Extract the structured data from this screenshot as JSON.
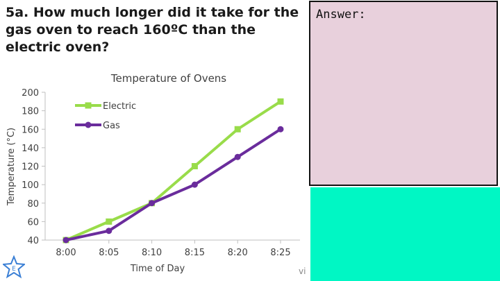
{
  "question": {
    "text": "5a. How much longer did it take for the gas oven to reach 160ºC than the electric oven?"
  },
  "answer": {
    "label": "Answer:"
  },
  "footer": {
    "text": "vi"
  },
  "colors": {
    "answer_bg": "#e8d0dc",
    "teal": "#00f7c4",
    "electric": "#99dc4a",
    "gas": "#6a2c9c",
    "star": "#3a7fd5"
  },
  "icons": {
    "badge": "star-icon",
    "badge_letter": "E"
  },
  "chart_data": {
    "type": "line",
    "title": "Temperature of Ovens",
    "xlabel": "Time of Day",
    "ylabel": "Temperature (°C)",
    "categories": [
      "8:00",
      "8:05",
      "8:10",
      "8:15",
      "8:20",
      "8:25"
    ],
    "ylim": [
      40,
      200
    ],
    "yticks": [
      40,
      60,
      80,
      100,
      120,
      140,
      160,
      180,
      200
    ],
    "grid": false,
    "legend": "top-left",
    "series": [
      {
        "name": "Electric",
        "values": [
          40,
          60,
          80,
          120,
          160,
          190
        ],
        "marker": "square",
        "color": "#99dc4a"
      },
      {
        "name": "Gas",
        "values": [
          40,
          50,
          80,
          100,
          130,
          160
        ],
        "marker": "circle",
        "color": "#6a2c9c"
      }
    ]
  }
}
